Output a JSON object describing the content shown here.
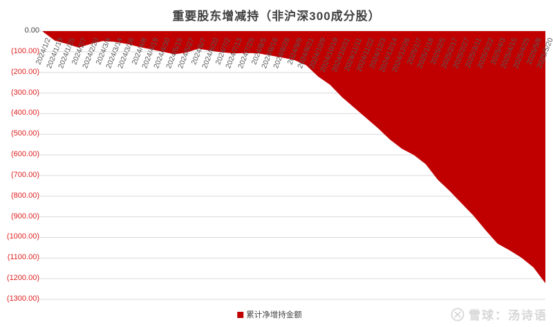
{
  "title": "重要股东增减持（非沪深300成分股）",
  "legend": {
    "label": "累计净增持金额"
  },
  "watermark": {
    "logo": "xueqiu-circle-x-icon",
    "text": "雪球：汤诗语"
  },
  "colors": {
    "area": "#C00000",
    "grid": "#D9D9D9",
    "title": "#404040",
    "zero_tick": "#404040",
    "negative_tick": "#E02020",
    "axis_label": "#595959",
    "legend_text": "#444444",
    "watermark": "#D6D6D6"
  },
  "chart_data": {
    "type": "area",
    "title": "重要股东增减持（非沪深300成分股）",
    "xlabel": "",
    "ylabel": "",
    "ylim": [
      -1300,
      0
    ],
    "ytick_step": 100,
    "grid": true,
    "legend_position": "bottom",
    "ytick_labels": [
      "0.00",
      "(100.00)",
      "(200.00)",
      "(300.00)",
      "(400.00)",
      "(500.00)",
      "(600.00)",
      "(700.00)",
      "(800.00)",
      "(900.00)",
      "(1000.00)",
      "(1100.00)",
      "(1200.00)",
      "(1300.00)"
    ],
    "categories": [
      "2024/1/2",
      "2024/1/13",
      "2024/1/25",
      "2024/2/7",
      "2024/2/20",
      "2024/3/4",
      "2024/3/14",
      "2024/3/26",
      "2024/4/8",
      "2024/4/19",
      "2024/4/30",
      "2024/5/15",
      "2024/5/27",
      "2024/6/7",
      "2024/6/20",
      "2024/7/2",
      "2024/7/13",
      "2024/7/25",
      "2024/8/5",
      "2024/8/16",
      "2024/8/28",
      "2024/9/9",
      "2024/9/21",
      "2024/10/9",
      "2024/10/19",
      "2024/10/31",
      "2024/11/11",
      "2024/11/22",
      "2024/12/3",
      "2024/12/14",
      "2024/12/26",
      "2025/1/7",
      "2025/1/18",
      "2025/2/5",
      "2025/2/17",
      "2025/2/27",
      "2025/3/11",
      "2025/3/22",
      "2025/4/3",
      "2025/4/15",
      "2025/4/25",
      "2025/5/8",
      "2025/5/20"
    ],
    "series": [
      {
        "name": "累计净增持金额",
        "color": "#C00000",
        "values": [
          -3,
          -46,
          -62,
          -80,
          -62,
          -48,
          -52,
          -62,
          -76,
          -88,
          -100,
          -112,
          -104,
          -85,
          -95,
          -103,
          -108,
          -106,
          -108,
          -118,
          -128,
          -140,
          -165,
          -220,
          -260,
          -320,
          -370,
          -420,
          -470,
          -525,
          -570,
          -600,
          -645,
          -720,
          -775,
          -835,
          -895,
          -965,
          -1030,
          -1062,
          -1098,
          -1145,
          -1222
        ]
      }
    ]
  }
}
